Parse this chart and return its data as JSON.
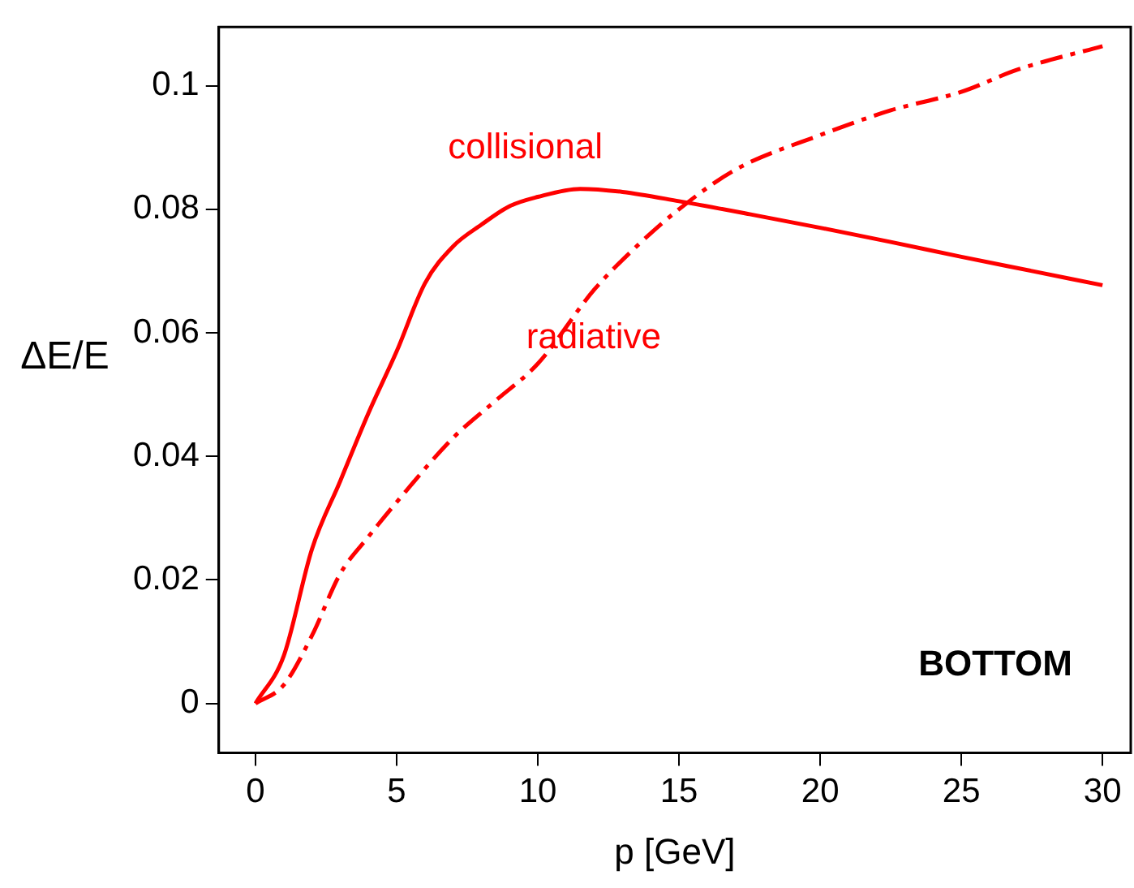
{
  "chart_data": {
    "type": "line",
    "xlabel": "p [GeV]",
    "ylabel": "ΔE/E",
    "xlim": [
      -1.3,
      31
    ],
    "ylim": [
      -0.008,
      0.1095
    ],
    "xticks": [
      0,
      5,
      10,
      15,
      20,
      25,
      30
    ],
    "yticks": [
      0,
      0.02,
      0.04,
      0.06,
      0.08,
      0.1
    ],
    "grid": false,
    "legend": false,
    "marker": "none",
    "series": [
      {
        "name": "collisional",
        "color": "#ff0000",
        "line_style": "solid",
        "x": [
          0,
          1,
          2,
          3,
          4,
          5,
          6,
          7,
          8,
          9,
          10,
          11.5,
          13,
          15,
          17.5,
          20,
          22.5,
          25,
          27.5,
          30
        ],
        "values": [
          0,
          0.0077,
          0.025,
          0.036,
          0.047,
          0.057,
          0.068,
          0.074,
          0.0775,
          0.0805,
          0.082,
          0.0833,
          0.0828,
          0.0813,
          0.0792,
          0.077,
          0.0747,
          0.0723,
          0.07,
          0.0677
        ]
      },
      {
        "name": "radiative",
        "color": "#ff0000",
        "line_style": "dashed",
        "x": [
          0,
          1,
          2,
          3,
          4,
          5,
          7,
          8.5,
          10,
          12,
          13.5,
          15,
          17,
          20,
          22.5,
          25,
          27,
          30
        ],
        "values": [
          0,
          0.003,
          0.011,
          0.021,
          0.027,
          0.0326,
          0.043,
          0.049,
          0.055,
          0.067,
          0.074,
          0.08,
          0.0864,
          0.092,
          0.096,
          0.099,
          0.1026,
          0.1064
        ]
      }
    ],
    "annotations": [
      "BOTTOM"
    ]
  }
}
